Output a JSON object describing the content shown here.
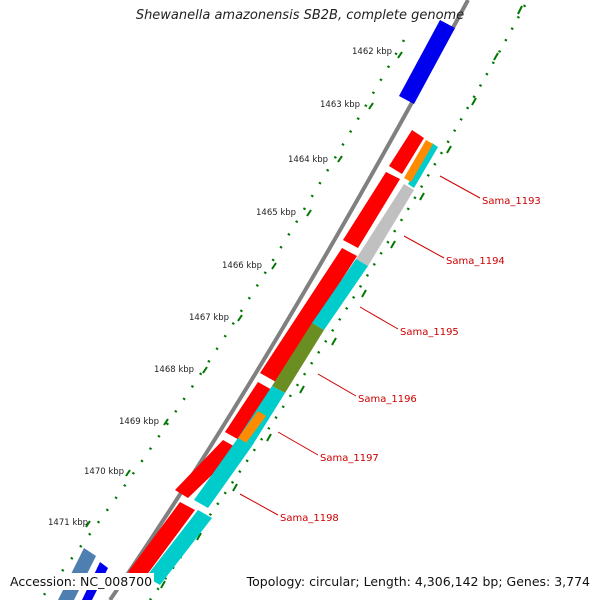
{
  "title": "Shewanella amazonensis SB2B, complete genome",
  "accession": "Accession: NC_008700",
  "summary": "Topology: circular; Length: 4,306,142 bp; Genes: 3,774",
  "ticks": [
    "1462 kbp",
    "1463 kbp",
    "1464 kbp",
    "1465 kbp",
    "1466 kbp",
    "1467 kbp",
    "1468 kbp",
    "1469 kbp",
    "1470 kbp",
    "1471 kbp"
  ],
  "gene_labels": [
    "Sama_1193",
    "Sama_1194",
    "Sama_1195",
    "Sama_1196",
    "Sama_1197",
    "Sama_1198"
  ],
  "colors": {
    "forward_cds": "#ff0000",
    "blue_cds": "#0000ee",
    "cyan": "#00cccc",
    "orange": "#ff8c00",
    "grey": "#c0c0c0",
    "olive": "#6b8e23",
    "backbone": "#808080",
    "tick_green": "#007700",
    "label_red": "#cc0000"
  }
}
